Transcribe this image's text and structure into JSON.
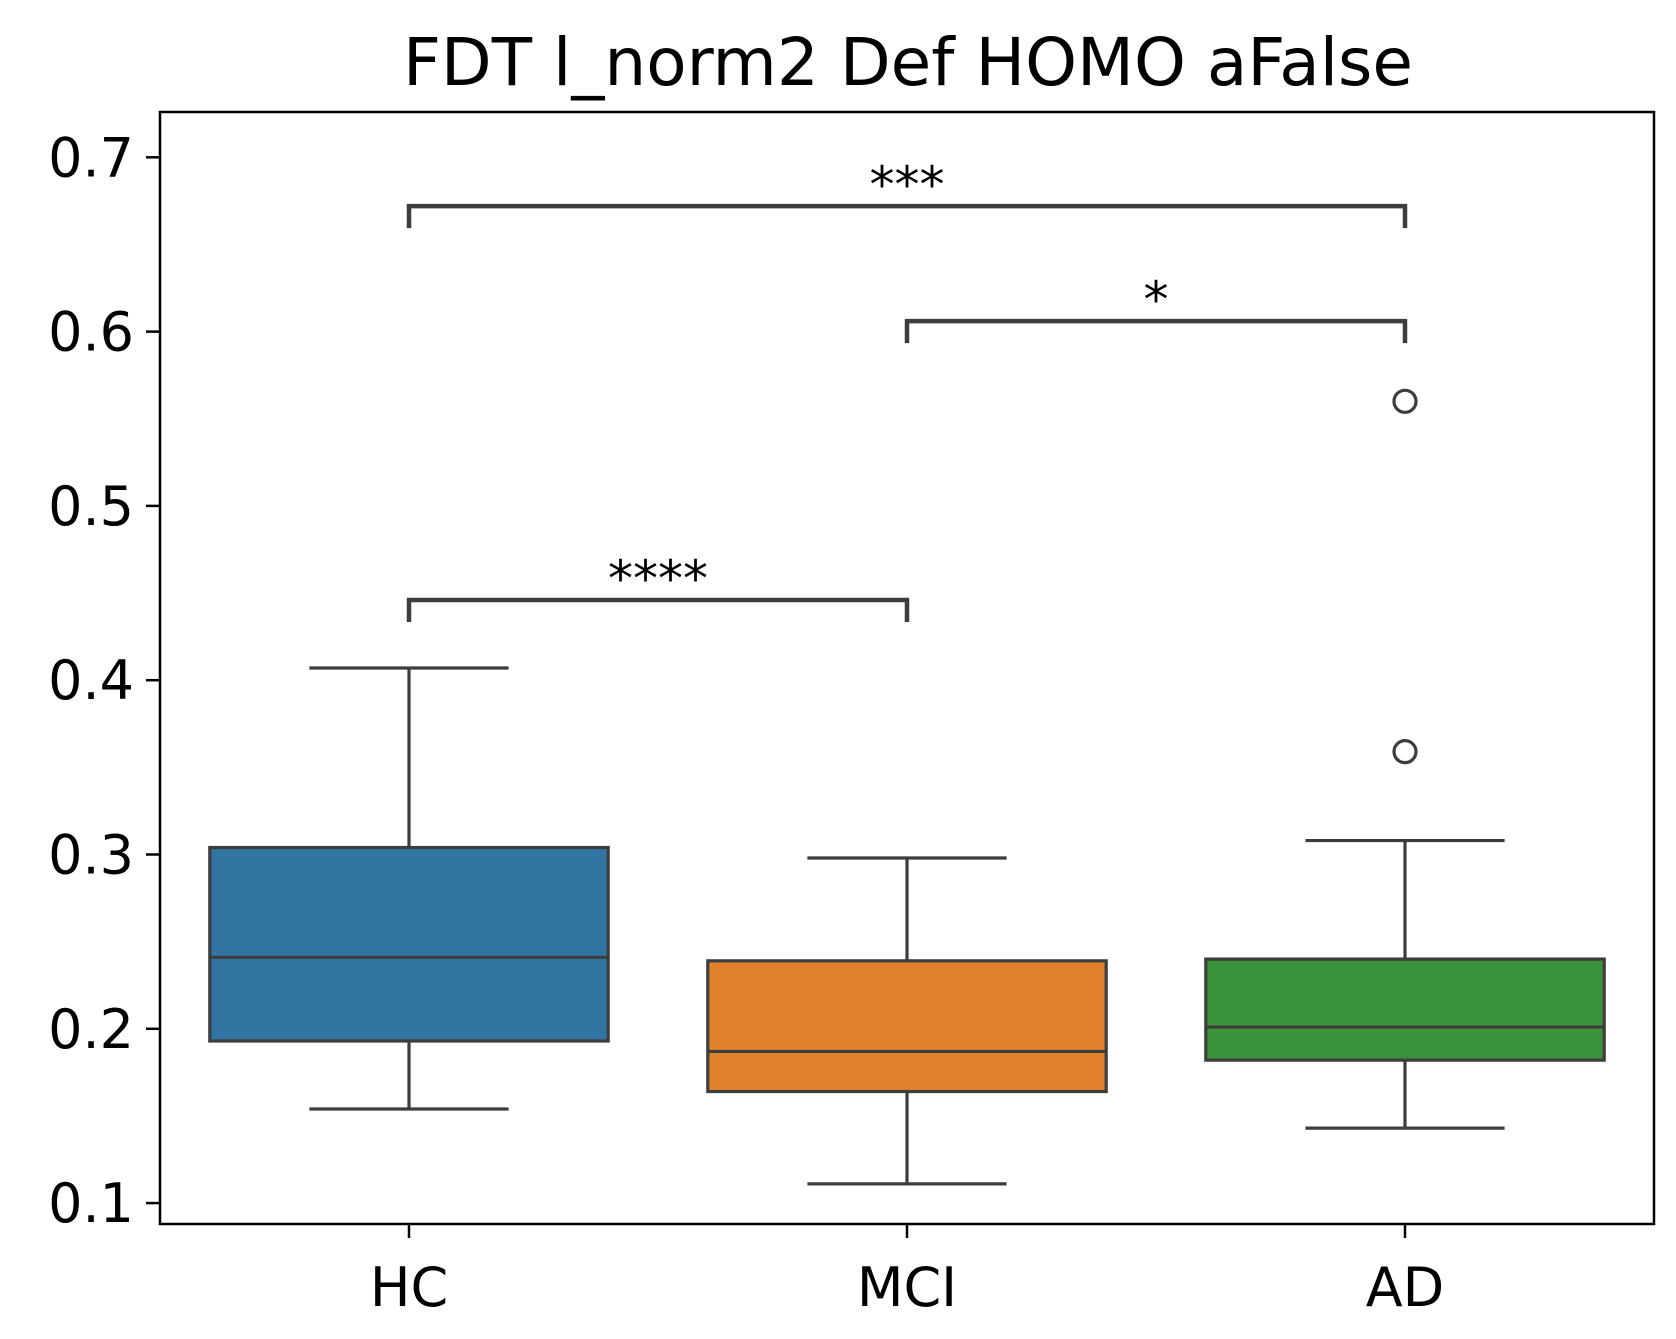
{
  "chart_data": {
    "type": "box",
    "title": "FDT l_norm2 Def HOMO aFalse",
    "xlabel": "",
    "ylabel": "",
    "categories": [
      "HC",
      "MCI",
      "AD"
    ],
    "ylim": [
      0.088,
      0.726
    ],
    "yticks": [
      0.1,
      0.2,
      0.3,
      0.4,
      0.5,
      0.6,
      0.7
    ],
    "ytick_labels": [
      "0.1",
      "0.2",
      "0.3",
      "0.4",
      "0.5",
      "0.6",
      "0.7"
    ],
    "grid": false,
    "legend": "none",
    "boxes": [
      {
        "category": "HC",
        "whisker_low": 0.154,
        "q1": 0.193,
        "median": 0.241,
        "q3": 0.304,
        "whisker_high": 0.407,
        "fliers": [],
        "color": "#3274a1"
      },
      {
        "category": "MCI",
        "whisker_low": 0.111,
        "q1": 0.164,
        "median": 0.187,
        "q3": 0.239,
        "whisker_high": 0.298,
        "fliers": [],
        "color": "#e1812c"
      },
      {
        "category": "AD",
        "whisker_low": 0.143,
        "q1": 0.182,
        "median": 0.201,
        "q3": 0.24,
        "whisker_high": 0.308,
        "fliers": [
          0.359,
          0.56
        ],
        "color": "#3a923a"
      }
    ],
    "annotations": [
      {
        "from": "HC",
        "to": "MCI",
        "y": 0.446,
        "label": "****"
      },
      {
        "from": "MCI",
        "to": "AD",
        "y": 0.606,
        "label": "*"
      },
      {
        "from": "HC",
        "to": "AD",
        "y": 0.672,
        "label": "***"
      }
    ]
  }
}
